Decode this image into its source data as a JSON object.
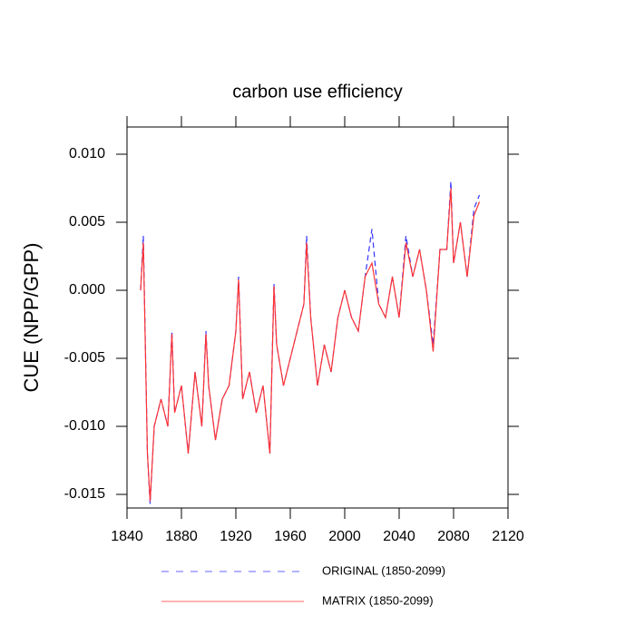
{
  "chart_data": {
    "type": "line",
    "title": "carbon use efficiency",
    "y_label": "CUE  (NPP/GPP)",
    "x": [
      1850,
      1852,
      1855,
      1857,
      1860,
      1865,
      1870,
      1873,
      1875,
      1880,
      1885,
      1890,
      1895,
      1898,
      1900,
      1905,
      1910,
      1915,
      1920,
      1922,
      1925,
      1930,
      1935,
      1940,
      1945,
      1948,
      1950,
      1955,
      1960,
      1965,
      1970,
      1972,
      1975,
      1980,
      1985,
      1990,
      1995,
      2000,
      2005,
      2010,
      2015,
      2020,
      2025,
      2030,
      2035,
      2040,
      2045,
      2050,
      2055,
      2060,
      2065,
      2070,
      2075,
      2078,
      2080,
      2085,
      2090,
      2095,
      2099
    ],
    "series": [
      {
        "name": "ORIGINAL (1850-2099)",
        "color": "#3333ff",
        "dashed": true,
        "values": [
          0.0,
          0.004,
          -0.012,
          -0.0157,
          -0.01,
          -0.008,
          -0.01,
          -0.003,
          -0.009,
          -0.007,
          -0.012,
          -0.006,
          -0.01,
          -0.003,
          -0.007,
          -0.011,
          -0.008,
          -0.007,
          -0.003,
          0.001,
          -0.008,
          -0.006,
          -0.009,
          -0.007,
          -0.012,
          0.0005,
          -0.004,
          -0.007,
          -0.005,
          -0.003,
          -0.001,
          0.004,
          -0.002,
          -0.007,
          -0.004,
          -0.006,
          -0.002,
          0.0,
          -0.002,
          -0.003,
          0.001,
          0.0045,
          -0.001,
          -0.002,
          0.001,
          -0.002,
          0.004,
          0.001,
          0.003,
          0.0,
          -0.004,
          0.003,
          0.003,
          0.008,
          0.002,
          0.005,
          0.001,
          0.006,
          0.007
        ]
      },
      {
        "name": "MATRIX (1850-2099)",
        "color": "#ff3333",
        "dashed": false,
        "values": [
          0.0,
          0.0035,
          -0.012,
          -0.0155,
          -0.01,
          -0.008,
          -0.01,
          -0.0032,
          -0.009,
          -0.007,
          -0.012,
          -0.006,
          -0.01,
          -0.0032,
          -0.007,
          -0.011,
          -0.008,
          -0.007,
          -0.003,
          0.0008,
          -0.008,
          -0.006,
          -0.009,
          -0.007,
          -0.012,
          0.0003,
          -0.004,
          -0.007,
          -0.005,
          -0.003,
          -0.001,
          0.0035,
          -0.002,
          -0.007,
          -0.004,
          -0.006,
          -0.002,
          0.0,
          -0.002,
          -0.003,
          0.001,
          0.002,
          -0.001,
          -0.002,
          0.001,
          -0.002,
          0.0035,
          0.001,
          0.003,
          0.0,
          -0.0045,
          0.003,
          0.003,
          0.0075,
          0.002,
          0.005,
          0.001,
          0.0055,
          0.0065
        ]
      }
    ],
    "xlim": [
      1840,
      2120
    ],
    "xticks": [
      1840,
      1880,
      1920,
      1960,
      2000,
      2040,
      2080,
      2120
    ],
    "ylim": [
      -0.016,
      0.012
    ],
    "yticks": [
      -0.015,
      {
        "value": -0.01,
        "label": "-0.010"
      },
      -0.005,
      {
        "value": 0,
        "label": "0.000"
      },
      0.005,
      {
        "value": 0.01,
        "label": "0.010"
      }
    ]
  }
}
